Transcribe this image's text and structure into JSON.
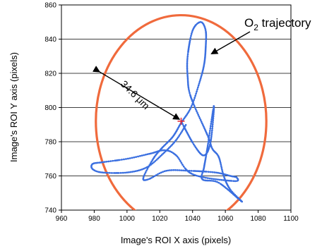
{
  "chart_data": {
    "type": "scatter",
    "title": "",
    "xlabel": "Image's ROI X axis (pixels)",
    "ylabel": "Image's ROI Y axis (pixels)",
    "xlim": [
      960,
      1100
    ],
    "ylim": [
      740,
      860
    ],
    "xticks": [
      960,
      980,
      1000,
      1020,
      1040,
      1060,
      1080,
      1100
    ],
    "yticks": [
      740,
      760,
      780,
      800,
      820,
      840,
      860
    ],
    "grid": "horizontal",
    "colors": {
      "trajectory": "#3a6fe0",
      "circle": "#f06a3c",
      "center": "#e8202a"
    },
    "circle": {
      "center": [
        1033,
        792
      ],
      "radius_x": 52,
      "radius_y": 62
    },
    "center_marker": [
      1033,
      792
    ],
    "distance_label": "34.6 μm",
    "annotation": {
      "prefix": "O",
      "subscript": "2",
      "suffix": " trajectory"
    },
    "series": [
      {
        "name": "O2 trajectory",
        "points": [
          [
            1033,
            792
          ],
          [
            1041,
            778
          ],
          [
            1047,
            772
          ],
          [
            1051,
            780
          ],
          [
            1053,
            801
          ],
          [
            1049,
            776
          ],
          [
            1047,
            765
          ],
          [
            1046,
            758
          ],
          [
            1056,
            756
          ],
          [
            1070,
            745
          ],
          [
            1063,
            752
          ],
          [
            1059,
            760
          ],
          [
            1056,
            771
          ],
          [
            1052,
            776
          ],
          [
            1049,
            784
          ],
          [
            1039,
            806
          ],
          [
            1037,
            818
          ],
          [
            1037,
            830
          ],
          [
            1040,
            845
          ],
          [
            1045,
            850
          ],
          [
            1048,
            845
          ],
          [
            1048,
            835
          ],
          [
            1047,
            825
          ],
          [
            1044,
            814
          ],
          [
            1039,
            800
          ],
          [
            1033,
            791
          ],
          [
            1028,
            783
          ],
          [
            1021,
            776
          ],
          [
            1016,
            770
          ],
          [
            1010,
            759
          ],
          [
            1013,
            758
          ],
          [
            1024,
            763
          ],
          [
            1038,
            763
          ],
          [
            1054,
            762
          ],
          [
            1063,
            760
          ],
          [
            1067,
            759
          ],
          [
            1065,
            757
          ],
          [
            1040,
            761
          ],
          [
            1030,
            772
          ],
          [
            1023,
            775
          ],
          [
            1014,
            773
          ],
          [
            1000,
            770
          ],
          [
            985,
            768
          ],
          [
            979,
            767
          ],
          [
            979,
            764
          ],
          [
            985,
            762
          ],
          [
            1000,
            762
          ],
          [
            1012,
            765
          ],
          [
            1022,
            773
          ],
          [
            1030,
            781
          ],
          [
            1036,
            790
          ]
        ]
      }
    ]
  }
}
